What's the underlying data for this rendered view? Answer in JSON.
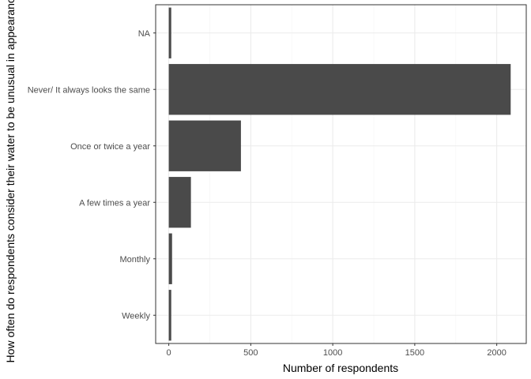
{
  "chart_data": {
    "type": "bar",
    "orientation": "horizontal",
    "categories": [
      "NA",
      "Never/ It always looks the same",
      "Once or twice a year",
      "A few times a year",
      "Monthly",
      "Weekly"
    ],
    "values": [
      15,
      2085,
      440,
      135,
      20,
      15
    ],
    "xlabel": "Number of respondents",
    "ylabel": "How often do respondents consider their water to be unusual in appearance?",
    "xlim": [
      -80,
      2180
    ],
    "xticks": [
      0,
      500,
      1000,
      1500,
      2000
    ],
    "xtick_labels": [
      "0",
      "500",
      "1000",
      "1500",
      "2000"
    ],
    "grid": true,
    "theme": "bw",
    "colors": {
      "bar": "#4a4a4a",
      "panel_border": "#333333",
      "grid_major": "#ebebeb",
      "grid_minor": "#f5f5f5"
    }
  }
}
